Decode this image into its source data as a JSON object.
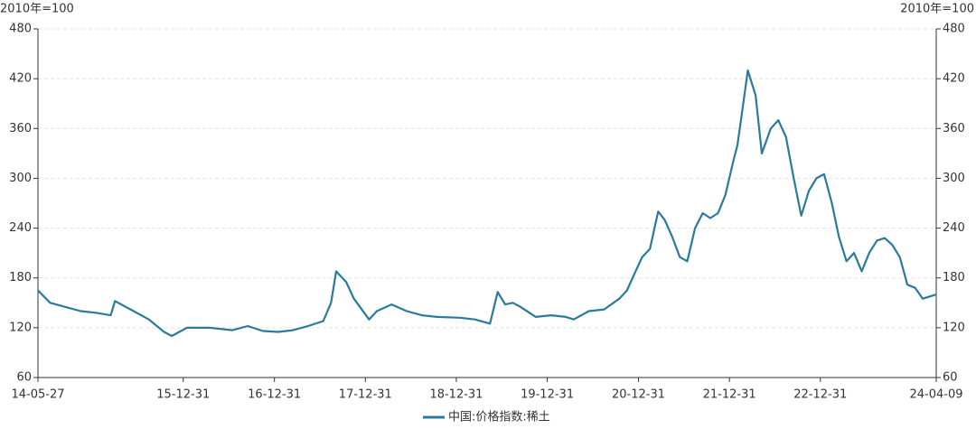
{
  "chart_data": {
    "type": "line",
    "y_label": "2010年=100",
    "y2_label": "2010年=100",
    "x": [
      "14-05-27",
      "14-07-15",
      "14-09-15",
      "14-11-15",
      "15-01-15",
      "15-03-15",
      "15-04-01",
      "15-06-15",
      "15-08-15",
      "15-10-15",
      "15-11-15",
      "16-01-15",
      "16-04-15",
      "16-07-15",
      "16-09-15",
      "16-11-15",
      "17-01-15",
      "17-03-15",
      "17-05-15",
      "17-07-15",
      "17-08-15",
      "17-09-05",
      "17-10-15",
      "17-11-15",
      "18-01-15",
      "18-02-15",
      "18-04-15",
      "18-06-15",
      "18-08-15",
      "18-10-15",
      "19-01-15",
      "19-03-15",
      "19-05-15",
      "19-06-15",
      "19-07-15",
      "19-08-15",
      "19-09-15",
      "19-11-15",
      "20-01-15",
      "20-03-15",
      "20-04-15",
      "20-06-15",
      "20-08-15",
      "20-10-15",
      "20-11-15",
      "20-12-15",
      "21-01-15",
      "21-02-15",
      "21-03-20",
      "21-04-15",
      "21-05-15",
      "21-06-15",
      "21-07-15",
      "21-08-15",
      "21-09-15",
      "21-10-15",
      "21-11-15",
      "21-12-15",
      "22-01-15",
      "22-02-01",
      "22-02-20",
      "22-03-15",
      "22-04-15",
      "22-05-10",
      "22-06-15",
      "22-07-15",
      "22-08-15",
      "22-09-15",
      "22-10-15",
      "22-11-15",
      "22-12-15",
      "23-01-15",
      "23-02-15",
      "23-03-15",
      "23-04-15",
      "23-05-15",
      "23-06-15",
      "23-07-15",
      "23-08-15",
      "23-09-15",
      "23-10-15",
      "23-11-15",
      "23-12-15",
      "24-01-15",
      "24-02-15",
      "24-04-09"
    ],
    "series": [
      {
        "name": "中国:价格指数:稀土",
        "color": "#2a7b9b",
        "values": [
          165,
          150,
          145,
          140,
          138,
          135,
          152,
          140,
          130,
          115,
          110,
          120,
          120,
          117,
          122,
          116,
          115,
          117,
          122,
          128,
          150,
          188,
          175,
          155,
          130,
          140,
          148,
          140,
          135,
          133,
          132,
          130,
          125,
          163,
          148,
          150,
          145,
          133,
          135,
          133,
          130,
          140,
          142,
          155,
          165,
          185,
          205,
          215,
          260,
          250,
          230,
          205,
          200,
          240,
          258,
          252,
          258,
          280,
          320,
          340,
          380,
          430,
          400,
          330,
          360,
          370,
          350,
          300,
          255,
          285,
          300,
          305,
          270,
          230,
          200,
          210,
          188,
          210,
          225,
          228,
          220,
          205,
          172,
          168,
          155,
          160
        ]
      }
    ],
    "xlim": [
      "14-05-27",
      "24-04-09"
    ],
    "xticks": [
      "14-05-27",
      "15-12-31",
      "16-12-31",
      "17-12-31",
      "18-12-31",
      "19-12-31",
      "20-12-31",
      "21-12-31",
      "22-12-31",
      "24-04-09"
    ],
    "ylim": [
      60,
      480
    ],
    "yticks": [
      60,
      120,
      180,
      240,
      300,
      360,
      420,
      480
    ],
    "y2lim": [
      60,
      480
    ],
    "y2ticks": [
      60,
      120,
      180,
      240,
      300,
      360,
      420,
      480
    ],
    "grid": true,
    "legend": "bottom"
  }
}
